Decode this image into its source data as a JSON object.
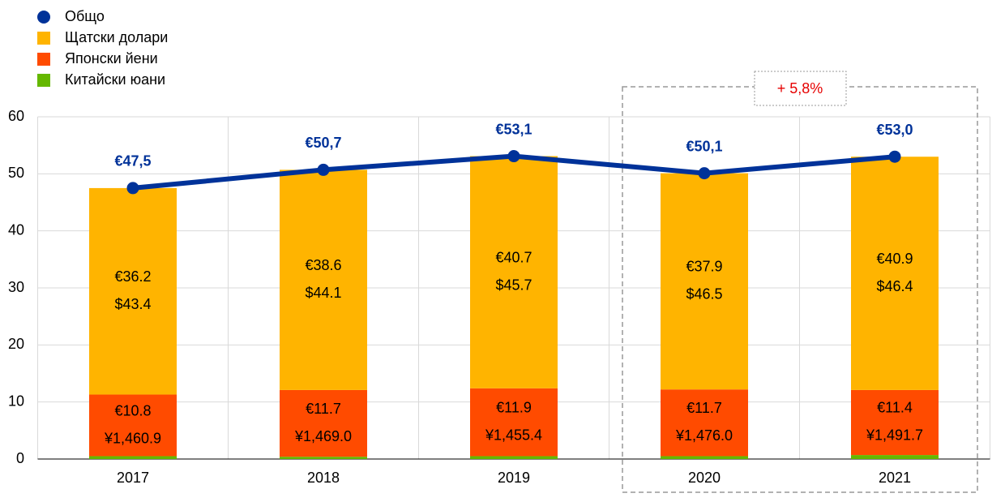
{
  "chart_data": {
    "type": "bar",
    "categories": [
      "2017",
      "2018",
      "2019",
      "2020",
      "2021"
    ],
    "series": [
      {
        "name": "Общо",
        "type": "line",
        "color": "#003299",
        "values": [
          47.5,
          50.7,
          53.1,
          50.1,
          53.0
        ],
        "value_labels": [
          "€47,5",
          "€50,7",
          "€53,1",
          "€50,1",
          "€53,0"
        ]
      },
      {
        "name": "Щатски долари",
        "color": "#ffb400",
        "values": [
          36.2,
          38.6,
          40.7,
          37.9,
          40.9
        ],
        "value_labels": [
          "€36.2",
          "€38.6",
          "€40.7",
          "€37.9",
          "€40.9"
        ],
        "native_labels": [
          "$43.4",
          "$44.1",
          "$45.7",
          "$46.5",
          "$46.4"
        ]
      },
      {
        "name": "Японски йени",
        "color": "#ff4b00",
        "values": [
          10.8,
          11.7,
          11.9,
          11.7,
          11.4
        ],
        "value_labels": [
          "€10.8",
          "€11.7",
          "€11.9",
          "€11.7",
          "€11.4"
        ],
        "native_labels": [
          "¥1,460.9",
          "¥1,469.0",
          "¥1,455.4",
          "¥1,476.0",
          "¥1,491.7"
        ]
      },
      {
        "name": "Китайски юани",
        "color": "#65b800",
        "values": [
          0.5,
          0.4,
          0.5,
          0.5,
          0.7
        ]
      }
    ],
    "stack_order": [
      "Китайски юани",
      "Японски йени",
      "Щатски долари"
    ],
    "ylim": [
      0,
      60
    ],
    "yticks": [
      0,
      10,
      20,
      30,
      40,
      50,
      60
    ],
    "grid": true,
    "annotation": "+ 5,8%"
  }
}
